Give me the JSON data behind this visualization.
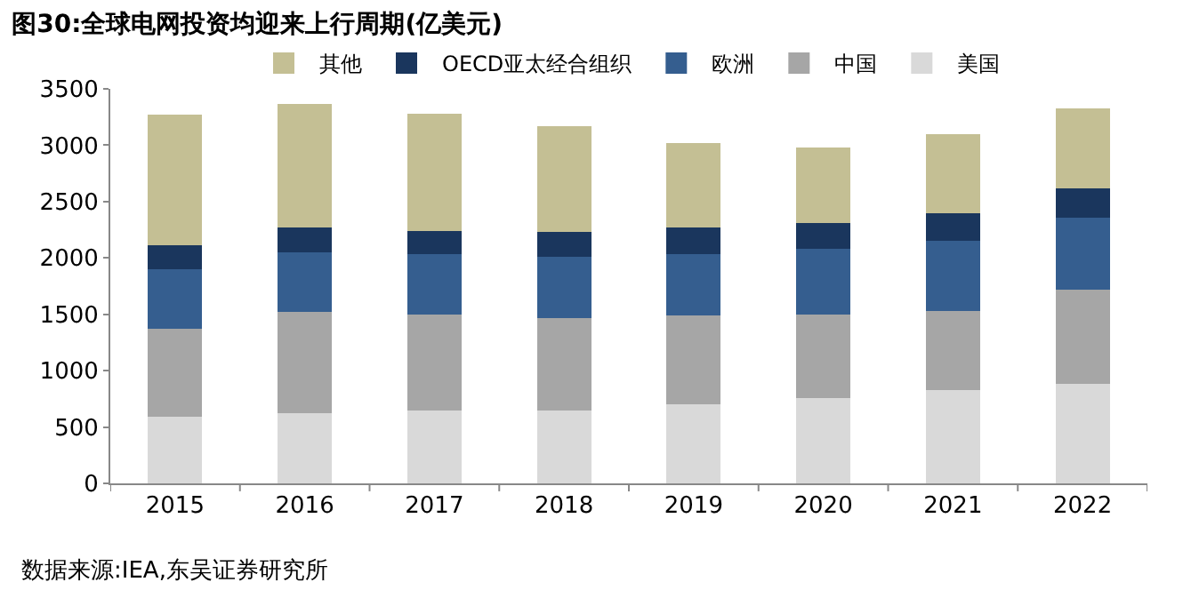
{
  "chart_data": {
    "type": "bar",
    "title": "图30:全球电网投资均迎来上行周期(亿美元)",
    "stacked": true,
    "legend": "top",
    "categories": [
      "2015",
      "2016",
      "2017",
      "2018",
      "2019",
      "2020",
      "2021",
      "2022"
    ],
    "series": [
      {
        "name": "美国",
        "color": "#d9d9d9",
        "values": [
          590,
          620,
          650,
          650,
          700,
          760,
          830,
          880
        ]
      },
      {
        "name": "中国",
        "color": "#a6a6a6",
        "values": [
          780,
          900,
          850,
          820,
          790,
          740,
          700,
          840
        ]
      },
      {
        "name": "欧洲",
        "color": "#355e8f",
        "values": [
          530,
          530,
          530,
          540,
          540,
          580,
          620,
          640
        ]
      },
      {
        "name": "OECD亚太经合组织",
        "color": "#1a365d",
        "values": [
          210,
          220,
          210,
          220,
          240,
          230,
          250,
          260
        ]
      },
      {
        "name": "其他",
        "color": "#c4bf94",
        "values": [
          1160,
          1100,
          1040,
          940,
          750,
          670,
          700,
          710
        ]
      }
    ],
    "ylim": [
      0,
      3500
    ],
    "yticks": [
      0,
      500,
      1000,
      1500,
      2000,
      2500,
      3000,
      3500
    ],
    "annotations": [
      "数据来源:IEA,东吴证券研究所"
    ]
  }
}
